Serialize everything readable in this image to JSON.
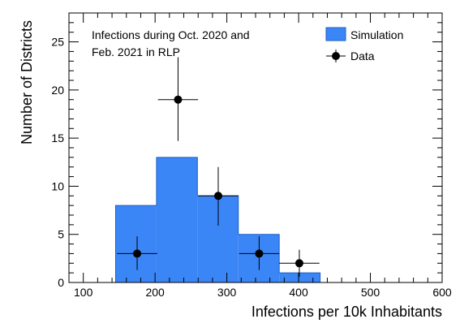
{
  "chart_data": {
    "type": "bar",
    "title": "",
    "xlabel": "Infections per 10k Inhabitants",
    "ylabel": "Number of Districts",
    "xlim": [
      80,
      600
    ],
    "ylim": [
      0,
      28
    ],
    "x_ticks": [
      100,
      200,
      300,
      400,
      500,
      600
    ],
    "y_ticks": [
      0,
      5,
      10,
      15,
      20,
      25
    ],
    "annotation": [
      "Infections during Oct. 2020 and",
      "Feb. 2021 in RLP"
    ],
    "legend_position": "top-right",
    "series": [
      {
        "name": "Simulation",
        "style": "histogram-filled",
        "color": "#3a86f6",
        "bins": [
          {
            "x0": 145,
            "x1": 202,
            "value": 8
          },
          {
            "x0": 202,
            "x1": 259,
            "value": 13
          },
          {
            "x0": 259,
            "x1": 316,
            "value": 9
          },
          {
            "x0": 316,
            "x1": 373,
            "value": 5
          },
          {
            "x0": 373,
            "x1": 430,
            "value": 1
          }
        ]
      },
      {
        "name": "Data",
        "style": "points-with-errors",
        "color": "#000000",
        "points": [
          {
            "x": 175,
            "y": 3,
            "xerr": 28,
            "ylo": 1.3,
            "yhi": 4.8
          },
          {
            "x": 232,
            "y": 19,
            "xerr": 28,
            "ylo": 14.7,
            "yhi": 23.4
          },
          {
            "x": 288,
            "y": 9,
            "xerr": 28,
            "ylo": 5.9,
            "yhi": 12.0
          },
          {
            "x": 345,
            "y": 3,
            "xerr": 28,
            "ylo": 1.3,
            "yhi": 4.8
          },
          {
            "x": 401,
            "y": 2,
            "xerr": 28,
            "ylo": 0.6,
            "yhi": 3.4
          }
        ]
      }
    ]
  }
}
